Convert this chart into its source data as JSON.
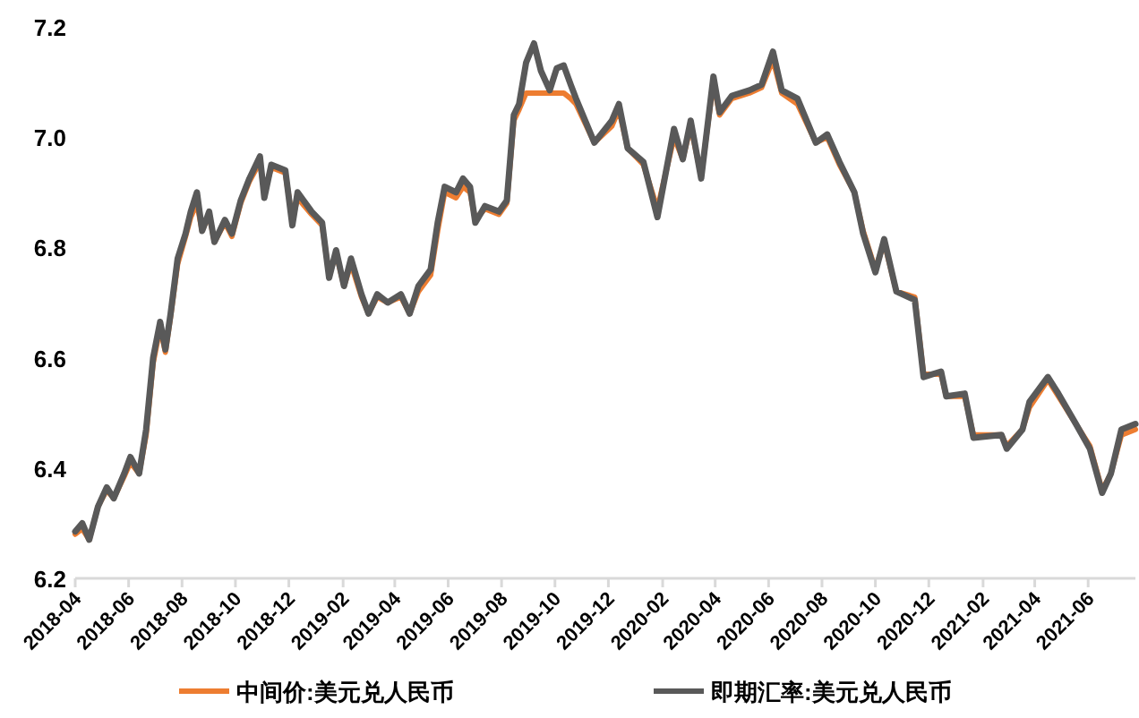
{
  "chart_data": {
    "type": "line",
    "x": [
      "2018-04-01",
      "2018-04-09",
      "2018-04-17",
      "2018-04-27",
      "2018-05-07",
      "2018-05-15",
      "2018-05-27",
      "2018-06-03",
      "2018-06-13",
      "2018-06-21",
      "2018-06-29",
      "2018-07-07",
      "2018-07-13",
      "2018-07-19",
      "2018-07-27",
      "2018-08-05",
      "2018-08-11",
      "2018-08-18",
      "2018-08-24",
      "2018-09-01",
      "2018-09-07",
      "2018-09-19",
      "2018-09-27",
      "2018-10-07",
      "2018-10-17",
      "2018-10-29",
      "2018-11-03",
      "2018-11-11",
      "2018-11-27",
      "2018-12-05",
      "2018-12-11",
      "2018-12-27",
      "2019-01-08",
      "2019-01-16",
      "2019-01-24",
      "2019-02-02",
      "2019-02-10",
      "2019-02-22",
      "2019-03-02",
      "2019-03-12",
      "2019-03-24",
      "2019-04-08",
      "2019-04-18",
      "2019-04-28",
      "2019-05-12",
      "2019-05-20",
      "2019-05-28",
      "2019-06-10",
      "2019-06-18",
      "2019-06-26",
      "2019-07-02",
      "2019-07-13",
      "2019-07-29",
      "2019-08-07",
      "2019-08-15",
      "2019-08-21",
      "2019-08-29",
      "2019-09-07",
      "2019-09-15",
      "2019-09-25",
      "2019-10-03",
      "2019-10-11",
      "2019-10-19",
      "2019-10-25",
      "2019-11-15",
      "2019-12-05",
      "2019-12-13",
      "2019-12-23",
      "2020-01-10",
      "2020-01-26",
      "2020-02-14",
      "2020-02-24",
      "2020-03-04",
      "2020-03-16",
      "2020-03-30",
      "2020-04-06",
      "2020-04-20",
      "2020-05-10",
      "2020-05-24",
      "2020-06-06",
      "2020-06-16",
      "2020-07-04",
      "2020-07-25",
      "2020-08-07",
      "2020-08-21",
      "2020-09-07",
      "2020-09-17",
      "2020-10-01",
      "2020-10-11",
      "2020-10-25",
      "2020-11-15",
      "2020-11-25",
      "2020-12-15",
      "2020-12-21",
      "2021-01-11",
      "2021-01-21",
      "2021-02-22",
      "2021-02-28",
      "2021-03-18",
      "2021-03-26",
      "2021-04-16",
      "2021-04-28",
      "2021-05-18",
      "2021-06-03",
      "2021-06-17",
      "2021-06-27",
      "2021-07-09",
      "2021-07-25"
    ],
    "series": [
      {
        "name": "中间价:美元兑人民币",
        "color": "#ed7d31",
        "values": [
          6.28,
          6.29,
          6.27,
          6.33,
          6.36,
          6.345,
          6.385,
          6.41,
          6.39,
          6.46,
          6.59,
          6.655,
          6.61,
          6.675,
          6.77,
          6.82,
          6.855,
          6.88,
          6.83,
          6.86,
          6.81,
          6.845,
          6.82,
          6.88,
          6.92,
          6.955,
          6.9,
          6.945,
          6.935,
          6.85,
          6.89,
          6.86,
          6.84,
          6.75,
          6.79,
          6.73,
          6.77,
          6.71,
          6.68,
          6.71,
          6.7,
          6.71,
          6.68,
          6.72,
          6.75,
          6.83,
          6.9,
          6.89,
          6.91,
          6.9,
          6.85,
          6.87,
          6.86,
          6.88,
          7.03,
          7.05,
          7.08,
          7.08,
          7.08,
          7.08,
          7.08,
          7.08,
          7.07,
          7.06,
          6.99,
          7.02,
          7.05,
          6.98,
          6.95,
          6.87,
          7.0,
          6.96,
          7.02,
          6.93,
          7.1,
          7.04,
          7.07,
          7.08,
          7.09,
          7.14,
          7.08,
          7.06,
          6.99,
          7.0,
          6.95,
          6.9,
          6.83,
          6.76,
          6.81,
          6.72,
          6.71,
          6.57,
          6.57,
          6.53,
          6.53,
          6.46,
          6.46,
          6.44,
          6.47,
          6.51,
          6.56,
          6.53,
          6.48,
          6.44,
          6.36,
          6.39,
          6.46,
          6.47
        ]
      },
      {
        "name": "即期汇率:美元兑人民币",
        "color": "#595959",
        "values": [
          6.285,
          6.3,
          6.27,
          6.33,
          6.365,
          6.345,
          6.39,
          6.42,
          6.39,
          6.47,
          6.6,
          6.665,
          6.615,
          6.68,
          6.78,
          6.825,
          6.865,
          6.9,
          6.83,
          6.865,
          6.81,
          6.85,
          6.825,
          6.885,
          6.925,
          6.965,
          6.89,
          6.95,
          6.94,
          6.84,
          6.9,
          6.865,
          6.845,
          6.745,
          6.795,
          6.73,
          6.78,
          6.715,
          6.68,
          6.715,
          6.7,
          6.715,
          6.68,
          6.73,
          6.76,
          6.845,
          6.91,
          6.9,
          6.925,
          6.91,
          6.845,
          6.875,
          6.865,
          6.885,
          7.04,
          7.06,
          7.135,
          7.17,
          7.12,
          7.085,
          7.125,
          7.13,
          7.095,
          7.07,
          6.99,
          7.03,
          7.06,
          6.98,
          6.955,
          6.855,
          7.015,
          6.96,
          7.03,
          6.925,
          7.11,
          7.045,
          7.075,
          7.085,
          7.095,
          7.155,
          7.085,
          7.07,
          6.99,
          7.005,
          6.955,
          6.9,
          6.825,
          6.755,
          6.815,
          6.72,
          6.705,
          6.565,
          6.575,
          6.53,
          6.535,
          6.455,
          6.46,
          6.435,
          6.47,
          6.52,
          6.565,
          6.535,
          6.48,
          6.435,
          6.355,
          6.39,
          6.47,
          6.48
        ]
      }
    ],
    "xlim": [
      "2018-04-01",
      "2021-07-25"
    ],
    "xticks": [
      "2018-04",
      "2018-06",
      "2018-08",
      "2018-10",
      "2018-12",
      "2019-02",
      "2019-04",
      "2019-06",
      "2019-08",
      "2019-10",
      "2019-12",
      "2020-02",
      "2020-04",
      "2020-06",
      "2020-08",
      "2020-10",
      "2020-12",
      "2021-02",
      "2021-04",
      "2021-06"
    ],
    "ylim": [
      6.2,
      7.2
    ],
    "yticks": [
      {
        "value": 6.2,
        "label": "6.2"
      },
      {
        "value": 6.4,
        "label": "6.4"
      },
      {
        "value": 6.6,
        "label": "6.6"
      },
      {
        "value": 6.8,
        "label": "6.8"
      },
      {
        "value": 7.0,
        "label": "7.0"
      },
      {
        "value": 7.2,
        "label": "7.2"
      }
    ],
    "grid": false,
    "legend": "bottom",
    "marker": "none",
    "line_style": "solid"
  }
}
